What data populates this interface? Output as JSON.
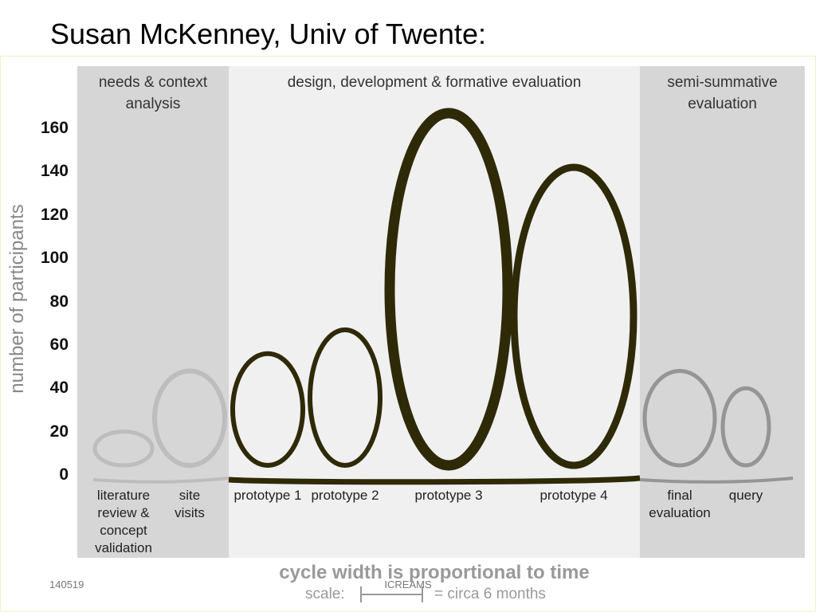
{
  "slide_title": "Susan McKenney, Univ of Twente:",
  "footer_left": "140519",
  "footer_center": "ICREAMS",
  "chart_data": {
    "type": "loop",
    "ylabel": "number of participants",
    "xlabel": "cycle width is proportional to time",
    "scale_label": "scale:",
    "scale_note": "= circa 6 months",
    "ylim": [
      0,
      170
    ],
    "yticks": [
      0,
      20,
      40,
      60,
      80,
      100,
      120,
      140,
      160
    ],
    "phases": [
      {
        "name": "needs & context analysis",
        "band_color": "#d6d6d6",
        "color": "#bdbdbd",
        "categories": [
          "literature review & concept validation",
          "site visits"
        ],
        "values": [
          20,
          48
        ]
      },
      {
        "name": "design, development & formative evaluation",
        "band_color": "#f0f0f0",
        "color": "#2e2a08",
        "categories": [
          "prototype 1",
          "prototype 2",
          "prototype 3",
          "prototype 4"
        ],
        "values": [
          56,
          67,
          167,
          142
        ]
      },
      {
        "name": "semi-summative evaluation",
        "band_color": "#d6d6d6",
        "color": "#959595",
        "categories": [
          "final evaluation",
          "query"
        ],
        "values": [
          48,
          40
        ]
      }
    ]
  }
}
